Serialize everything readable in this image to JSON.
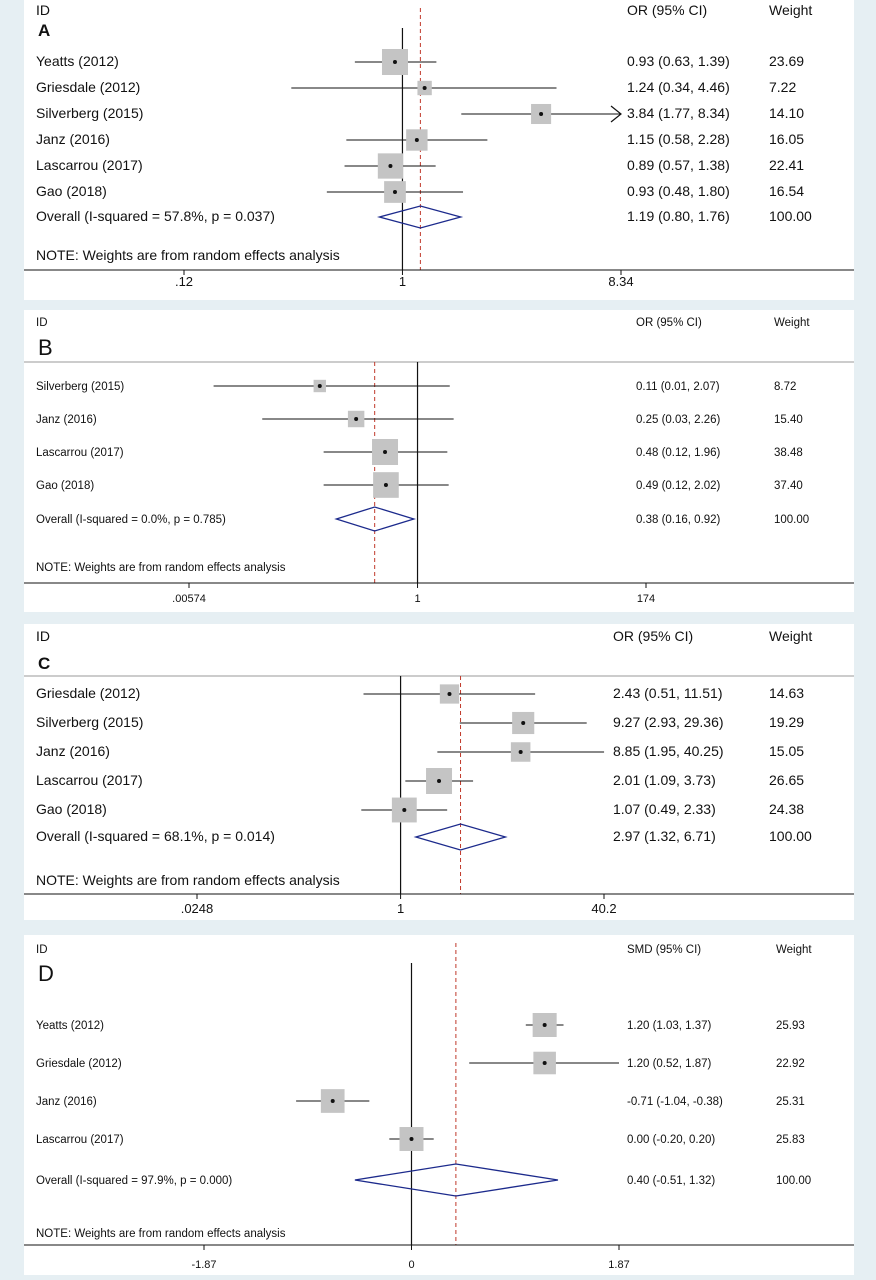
{
  "chart_data": [
    {
      "type": "forest",
      "panel": "A",
      "header": {
        "id": "ID",
        "effect": "OR (95% CI)",
        "weight": "Weight"
      },
      "scale": "log",
      "ticks": [
        {
          "value": 0.12,
          "label": ".12"
        },
        {
          "value": 1,
          "label": "1"
        },
        {
          "value": 8.34,
          "label": "8.34"
        }
      ],
      "xlim": [
        0.12,
        8.34
      ],
      "studies": [
        {
          "label": "Yeatts (2012)",
          "estimate": 0.93,
          "lower": 0.63,
          "upper": 1.39,
          "effect_text": "0.93 (0.63, 1.39)",
          "weight": "23.69"
        },
        {
          "label": "Griesdale (2012)",
          "estimate": 1.24,
          "lower": 0.34,
          "upper": 4.46,
          "effect_text": "1.24 (0.34, 4.46)",
          "weight": "7.22"
        },
        {
          "label": "Silverberg (2015)",
          "estimate": 3.84,
          "lower": 1.77,
          "upper": 8.34,
          "effect_text": "3.84 (1.77, 8.34)",
          "weight": "14.10"
        },
        {
          "label": "Janz (2016)",
          "estimate": 1.15,
          "lower": 0.58,
          "upper": 2.28,
          "effect_text": "1.15 (0.58, 2.28)",
          "weight": "16.05"
        },
        {
          "label": "Lascarrou (2017)",
          "estimate": 0.89,
          "lower": 0.57,
          "upper": 1.38,
          "effect_text": "0.89 (0.57, 1.38)",
          "weight": "22.41"
        },
        {
          "label": "Gao (2018)",
          "estimate": 0.93,
          "lower": 0.48,
          "upper": 1.8,
          "effect_text": "0.93 (0.48, 1.80)",
          "weight": "16.54"
        }
      ],
      "overall": {
        "label": "Overall  (I-squared = 57.8%, p = 0.037)",
        "estimate": 1.19,
        "lower": 0.8,
        "upper": 1.76,
        "effect_text": "1.19 (0.80, 1.76)",
        "weight": "100.00"
      },
      "note": "NOTE: Weights are from random effects analysis"
    },
    {
      "type": "forest",
      "panel": "B",
      "header": {
        "id": "ID",
        "effect": "OR (95% CI)",
        "weight": "Weight"
      },
      "scale": "log",
      "ticks": [
        {
          "value": 0.00574,
          "label": ".00574"
        },
        {
          "value": 1,
          "label": "1"
        },
        {
          "value": 174,
          "label": "174"
        }
      ],
      "xlim": [
        0.00574,
        174
      ],
      "studies": [
        {
          "label": "Silverberg (2015)",
          "estimate": 0.11,
          "lower": 0.01,
          "upper": 2.07,
          "effect_text": "0.11 (0.01, 2.07)",
          "weight": "8.72"
        },
        {
          "label": "Janz (2016)",
          "estimate": 0.25,
          "lower": 0.03,
          "upper": 2.26,
          "effect_text": "0.25 (0.03, 2.26)",
          "weight": "15.40"
        },
        {
          "label": "Lascarrou (2017)",
          "estimate": 0.48,
          "lower": 0.12,
          "upper": 1.96,
          "effect_text": "0.48 (0.12, 1.96)",
          "weight": "38.48"
        },
        {
          "label": "Gao (2018)",
          "estimate": 0.49,
          "lower": 0.12,
          "upper": 2.02,
          "effect_text": "0.49 (0.12, 2.02)",
          "weight": "37.40"
        }
      ],
      "overall": {
        "label": "Overall  (I-squared = 0.0%, p = 0.785)",
        "estimate": 0.38,
        "lower": 0.16,
        "upper": 0.92,
        "effect_text": "0.38 (0.16, 0.92)",
        "weight": "100.00"
      },
      "note": "NOTE: Weights are from random effects analysis"
    },
    {
      "type": "forest",
      "panel": "C",
      "header": {
        "id": "ID",
        "effect": "OR (95% CI)",
        "weight": "Weight"
      },
      "scale": "log",
      "ticks": [
        {
          "value": 0.0248,
          "label": ".0248"
        },
        {
          "value": 1,
          "label": "1"
        },
        {
          "value": 40.2,
          "label": "40.2"
        }
      ],
      "xlim": [
        0.0248,
        40.2
      ],
      "studies": [
        {
          "label": "Griesdale (2012)",
          "estimate": 2.43,
          "lower": 0.51,
          "upper": 11.51,
          "effect_text": "2.43 (0.51, 11.51)",
          "weight": "14.63"
        },
        {
          "label": "Silverberg (2015)",
          "estimate": 9.27,
          "lower": 2.93,
          "upper": 29.36,
          "effect_text": "9.27 (2.93, 29.36)",
          "weight": "19.29"
        },
        {
          "label": "Janz (2016)",
          "estimate": 8.85,
          "lower": 1.95,
          "upper": 40.25,
          "effect_text": "8.85 (1.95, 40.25)",
          "weight": "15.05"
        },
        {
          "label": "Lascarrou (2017)",
          "estimate": 2.01,
          "lower": 1.09,
          "upper": 3.73,
          "effect_text": "2.01 (1.09, 3.73)",
          "weight": "26.65"
        },
        {
          "label": "Gao (2018)",
          "estimate": 1.07,
          "lower": 0.49,
          "upper": 2.33,
          "effect_text": "1.07 (0.49, 2.33)",
          "weight": "24.38"
        }
      ],
      "overall": {
        "label": "Overall  (I-squared = 68.1%, p = 0.014)",
        "estimate": 2.97,
        "lower": 1.32,
        "upper": 6.71,
        "effect_text": "2.97 (1.32, 6.71)",
        "weight": "100.00"
      },
      "note": "NOTE: Weights are from random effects analysis"
    },
    {
      "type": "forest",
      "panel": "D",
      "header": {
        "id": "ID",
        "effect": "SMD (95% CI)",
        "weight": "Weight"
      },
      "scale": "linear",
      "ticks": [
        {
          "value": -1.87,
          "label": "-1.87"
        },
        {
          "value": 0,
          "label": "0"
        },
        {
          "value": 1.87,
          "label": "1.87"
        }
      ],
      "xlim": [
        -1.87,
        1.87
      ],
      "studies": [
        {
          "label": "Yeatts (2012)",
          "estimate": 1.2,
          "lower": 1.03,
          "upper": 1.37,
          "effect_text": "1.20 (1.03, 1.37)",
          "weight": "25.93"
        },
        {
          "label": "Griesdale (2012)",
          "estimate": 1.2,
          "lower": 0.52,
          "upper": 1.87,
          "effect_text": "1.20 (0.52, 1.87)",
          "weight": "22.92"
        },
        {
          "label": "Janz (2016)",
          "estimate": -0.71,
          "lower": -1.04,
          "upper": -0.38,
          "effect_text": "-0.71 (-1.04, -0.38)",
          "weight": "25.31"
        },
        {
          "label": "Lascarrou (2017)",
          "estimate": 0.0,
          "lower": -0.2,
          "upper": 0.2,
          "effect_text": "0.00 (-0.20, 0.20)",
          "weight": "25.83"
        }
      ],
      "overall": {
        "label": "Overall  (I-squared = 97.9%, p = 0.000)",
        "estimate": 0.4,
        "lower": -0.51,
        "upper": 1.32,
        "effect_text": "0.40 (-0.51, 1.32)",
        "weight": "100.00"
      },
      "note": "NOTE: Weights are from random effects analysis"
    }
  ],
  "colors": {
    "box": "#c4c4c4",
    "diamond": "#1c2a8c",
    "reference": "#c0392b",
    "line": "#111111"
  }
}
